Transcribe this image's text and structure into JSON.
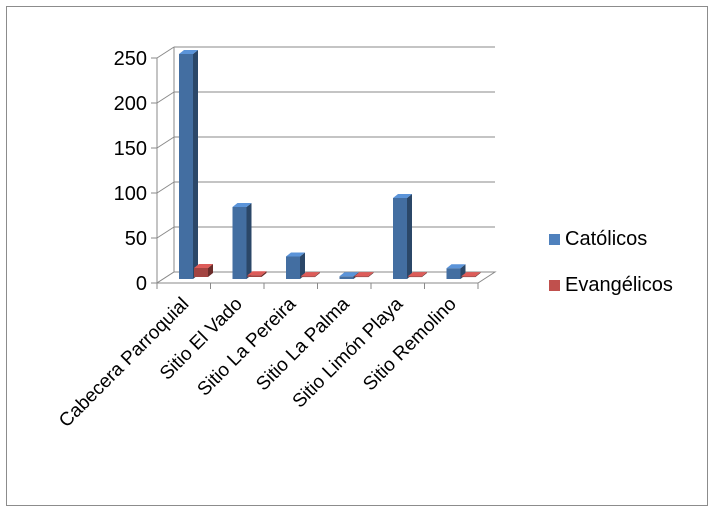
{
  "chart_data": {
    "type": "bar",
    "title": "",
    "xlabel": "",
    "ylabel": "",
    "categories": [
      "Cabecera Parroquial",
      "Sitio El Vado",
      "Sitio La Pereira",
      "Sitio La Palma",
      "Sitio Limón Playa",
      "Sitio Remolino"
    ],
    "series": [
      {
        "name": "Católicos",
        "values": [
          250,
          80,
          25,
          3,
          90,
          12
        ],
        "color": "#4f81bd"
      },
      {
        "name": "Evangélicos",
        "values": [
          10,
          2,
          1,
          1,
          1,
          1
        ],
        "color": "#c0504d"
      }
    ],
    "ylim": [
      0,
      250
    ],
    "yticks": [
      0,
      50,
      100,
      150,
      200,
      250
    ],
    "grid": true,
    "legend_position": "right",
    "style": "3d-column"
  }
}
